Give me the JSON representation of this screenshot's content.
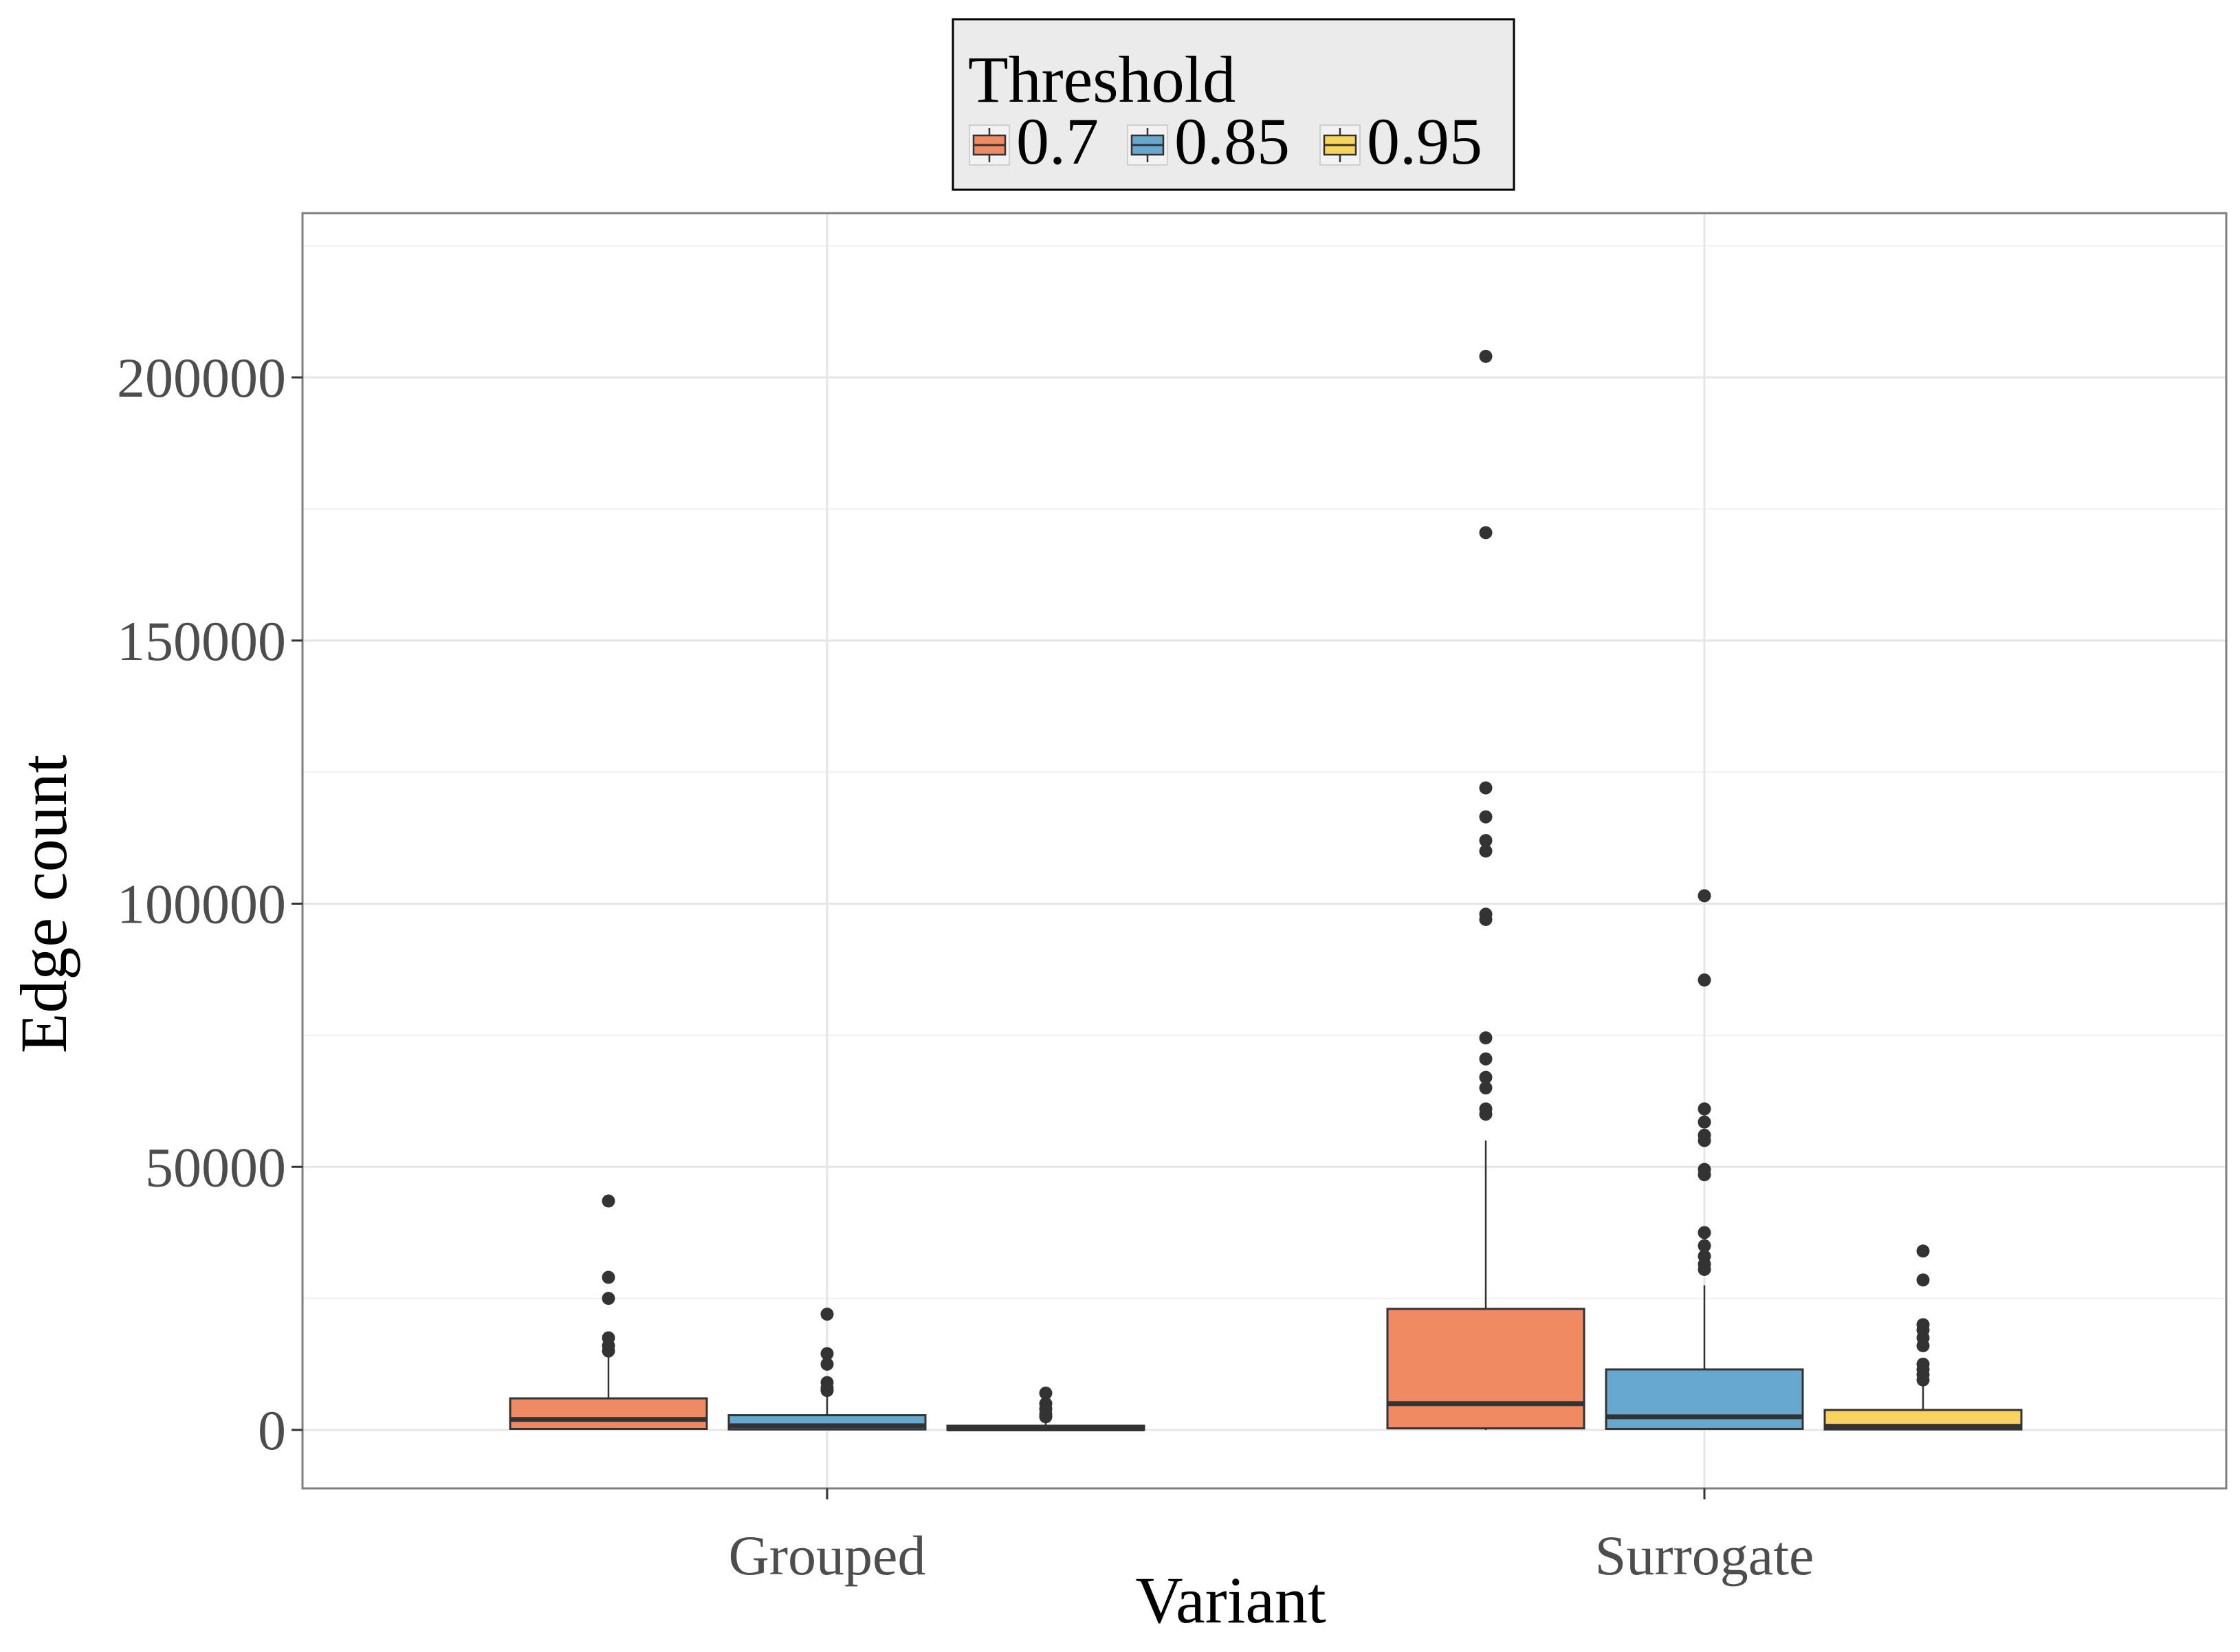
{
  "chart_data": {
    "type": "box",
    "xlabel": "Variant",
    "ylabel": "Edge count",
    "categories": [
      "Grouped",
      "Surrogate"
    ],
    "ylim": [
      -11000,
      225000
    ],
    "yticks": [
      0,
      50000,
      100000,
      150000,
      200000
    ],
    "yticks_minor": [
      25000,
      75000,
      125000,
      175000,
      225000
    ],
    "grid": true,
    "legend": {
      "title": "Threshold",
      "position": "top",
      "entries": [
        "0.7",
        "0.85",
        "0.95"
      ]
    },
    "series": [
      {
        "name": "0.7",
        "color": "#f08a63",
        "boxes": [
          {
            "category": "Grouped",
            "lower_whisker": 0,
            "q1": 200,
            "median": 2000,
            "q3": 6000,
            "upper_whisker": 14000,
            "outliers": [
              15000,
              16000,
              17500,
              25000,
              29000,
              43500
            ]
          },
          {
            "category": "Surrogate",
            "lower_whisker": 0,
            "q1": 300,
            "median": 5000,
            "q3": 23000,
            "upper_whisker": 55000,
            "outliers": [
              60000,
              61000,
              65000,
              67000,
              70500,
              74500,
              97000,
              98000,
              110000,
              112000,
              116500,
              122000,
              170500,
              204000
            ]
          }
        ]
      },
      {
        "name": "0.85",
        "color": "#66a8d0",
        "boxes": [
          {
            "category": "Grouped",
            "lower_whisker": 0,
            "q1": 100,
            "median": 800,
            "q3": 2800,
            "upper_whisker": 6500,
            "outliers": [
              7500,
              8000,
              9000,
              12500,
              14500,
              22000
            ]
          },
          {
            "category": "Surrogate",
            "lower_whisker": 0,
            "q1": 200,
            "median": 2500,
            "q3": 11500,
            "upper_whisker": 27500,
            "outliers": [
              30500,
              31500,
              33000,
              35000,
              37500,
              48500,
              49500,
              55000,
              56000,
              58500,
              61000,
              85500,
              101500
            ]
          }
        ]
      },
      {
        "name": "0.95",
        "color": "#f9d45c",
        "boxes": [
          {
            "category": "Grouped",
            "lower_whisker": 0,
            "q1": 0,
            "median": 200,
            "q3": 800,
            "upper_whisker": 1800,
            "outliers": [
              2500,
              3000,
              4000,
              5000,
              7000
            ]
          },
          {
            "category": "Surrogate",
            "lower_whisker": 0,
            "q1": 100,
            "median": 700,
            "q3": 3800,
            "upper_whisker": 9000,
            "outliers": [
              9500,
              10500,
              11500,
              12500,
              16000,
              17500,
              19000,
              20000,
              28500,
              34000
            ]
          }
        ]
      }
    ]
  }
}
